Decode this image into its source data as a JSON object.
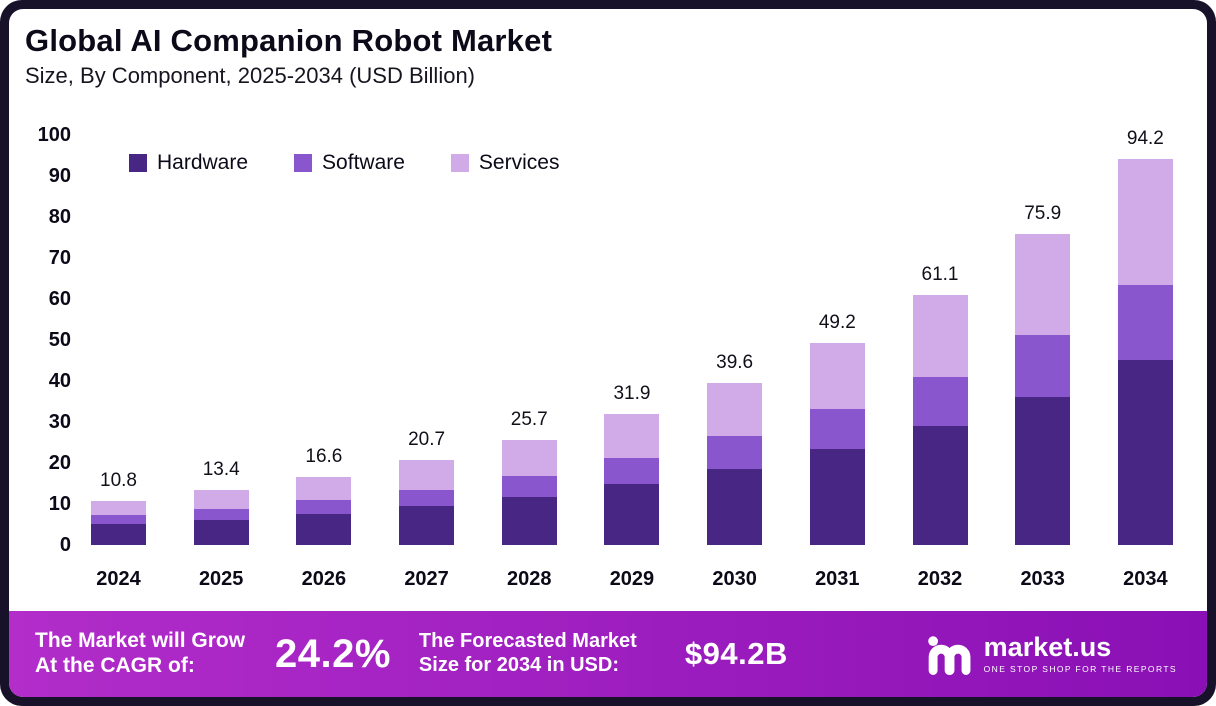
{
  "chart_data": {
    "type": "bar",
    "stacked": true,
    "title": "Global AI Companion Robot Market",
    "subtitle": "Size, By Component, 2025-2034 (USD Billion)",
    "categories": [
      "2024",
      "2025",
      "2026",
      "2027",
      "2028",
      "2029",
      "2030",
      "2031",
      "2032",
      "2033",
      "2034"
    ],
    "series": [
      {
        "name": "Hardware",
        "color": "#482683",
        "values": [
          5.1,
          6.2,
          7.6,
          9.4,
          11.8,
          14.9,
          18.6,
          23.3,
          29.0,
          36.0,
          45.2
        ]
      },
      {
        "name": "Software",
        "color": "#8a56ce",
        "values": [
          2.1,
          2.6,
          3.3,
          4.1,
          5.1,
          6.3,
          7.9,
          9.9,
          12.1,
          15.2,
          18.3
        ]
      },
      {
        "name": "Services",
        "color": "#d1abe8",
        "values": [
          3.6,
          4.6,
          5.7,
          7.2,
          8.8,
          10.7,
          13.1,
          16.0,
          20.0,
          24.7,
          30.7
        ]
      }
    ],
    "totals": [
      10.8,
      13.4,
      16.6,
      20.7,
      25.7,
      31.9,
      39.6,
      49.2,
      61.1,
      75.9,
      94.2
    ],
    "ylim": [
      0,
      100
    ],
    "yticks": [
      0,
      10,
      20,
      30,
      40,
      50,
      60,
      70,
      80,
      90,
      100
    ],
    "grid": false,
    "legend_position": "inside-top-left"
  },
  "footer": {
    "cagr_label": "The Market will Grow At the CAGR of:",
    "cagr_value": "24.2%",
    "forecast_label": "The Forecasted Market Size for 2034 in USD:",
    "forecast_value": "$94.2B",
    "brand": {
      "name": "market.us",
      "tagline": "ONE STOP SHOP FOR THE REPORTS"
    }
  },
  "theme": {
    "frame_border": "#171129",
    "footer_gradient_from": "#b22dca",
    "footer_gradient_to": "#8a10b5",
    "hardware_color": "#482683",
    "software_color": "#8a56ce",
    "services_color": "#d1abe8"
  }
}
